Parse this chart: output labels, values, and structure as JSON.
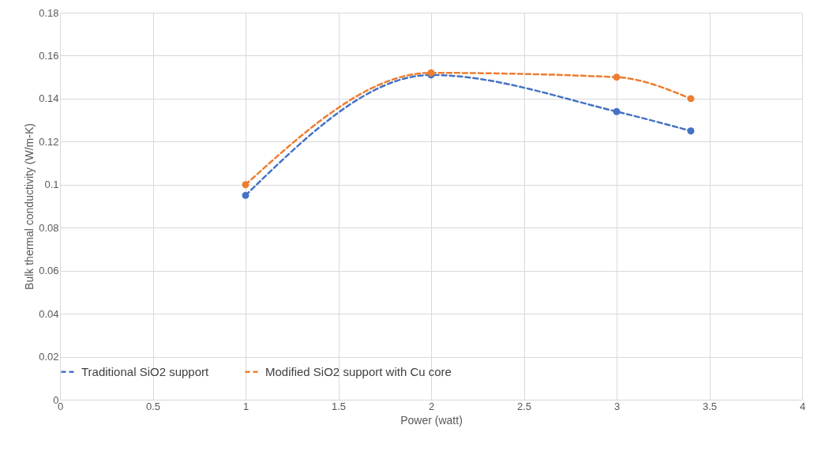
{
  "chart_data": {
    "type": "line",
    "xlabel": "Power (watt)",
    "ylabel": "Bulk thermal conductivity (W/m-K)",
    "x": [
      1,
      2,
      3,
      3.4
    ],
    "series": [
      {
        "name": "Traditional SiO2 support",
        "color": "#4472c4",
        "values": [
          0.095,
          0.151,
          0.134,
          0.125
        ],
        "line_style": "dashed"
      },
      {
        "name": "Modified SiO2 support with Cu core",
        "color": "#ed7d31",
        "values": [
          0.1,
          0.152,
          0.15,
          0.14
        ],
        "line_style": "dashed"
      }
    ],
    "xlim": [
      0,
      4
    ],
    "xticks": [
      0,
      0.5,
      1,
      1.5,
      2,
      2.5,
      3,
      3.5,
      4
    ],
    "ylim": [
      0,
      0.18
    ],
    "yticks": [
      0,
      0.02,
      0.04,
      0.06,
      0.08,
      0.1,
      0.12,
      0.14,
      0.16,
      0.18
    ],
    "grid": true,
    "legend": "bottom",
    "marker": "circle"
  }
}
